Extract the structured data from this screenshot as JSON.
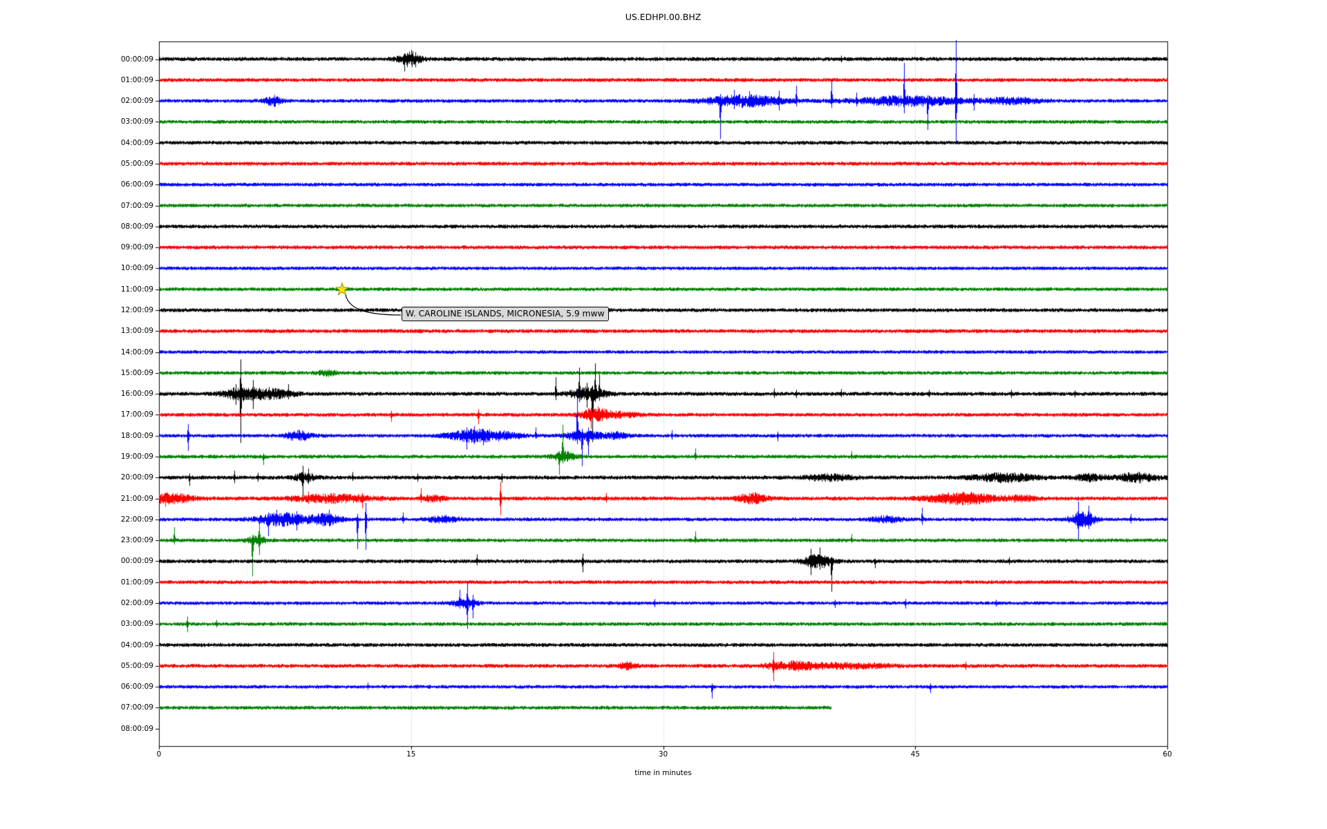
{
  "title": "US.EDHPI.00.BHZ",
  "xlabel": "time in minutes",
  "annotation": {
    "label": "W. CAROLINE ISLANDS, MICRONESIA, 5.9 mww",
    "row": 11,
    "minute": 10.9
  },
  "axis": {
    "xticks": [
      "0",
      "15",
      "30",
      "45",
      "60"
    ],
    "xtick_values": [
      0,
      15,
      30,
      45,
      60
    ],
    "grid_minutes": [
      15,
      30,
      45
    ]
  },
  "colors": {
    "cycle": [
      "#000000",
      "#ff0000",
      "#0000ff",
      "#008000"
    ],
    "grid": "#ababab",
    "box": "#000000",
    "star": "#f8e403",
    "star_edge": "#8a7a00",
    "annotation_bg": "#d9d9d9"
  },
  "chart_data": {
    "type": "line",
    "mode": "helicorder",
    "title": "US.EDHPI.00.BHZ",
    "xlabel": "time in minutes",
    "x_range": [
      0,
      60
    ],
    "row_duration_minutes": 60,
    "grid": "vertical-dotted",
    "rows": [
      {
        "label": "00:00:09",
        "c": 0,
        "base": 2.8,
        "bands": [
          {
            "t": 14.9,
            "w": 0.45,
            "a": 9
          }
        ],
        "spikes": [
          {
            "t": 14.6,
            "up": 8,
            "dn": 18
          },
          {
            "t": 15.0,
            "up": 13,
            "dn": 8
          },
          {
            "t": 15.25,
            "up": 10,
            "dn": 12
          },
          {
            "t": 40.6,
            "up": 5,
            "dn": 5
          }
        ]
      },
      {
        "label": "01:00:09",
        "c": 1,
        "base": 2.7
      },
      {
        "label": "02:00:09",
        "c": 2,
        "base": 2.6,
        "bands": [
          {
            "t": 6.8,
            "w": 0.35,
            "a": 6
          },
          {
            "t": 34.8,
            "w": 1.6,
            "a": 7
          },
          {
            "t": 44.6,
            "w": 2.2,
            "a": 6
          },
          {
            "t": 50.8,
            "w": 1.2,
            "a": 3.5
          }
        ],
        "spikes": [
          {
            "t": 33.4,
            "up": 10,
            "dn": 55
          },
          {
            "t": 34.2,
            "up": 16,
            "dn": 12
          },
          {
            "t": 35.1,
            "up": 14,
            "dn": 10
          },
          {
            "t": 36.9,
            "up": 15,
            "dn": 14
          },
          {
            "t": 37.9,
            "up": 22,
            "dn": 8
          },
          {
            "t": 40.0,
            "up": 31,
            "dn": 10
          },
          {
            "t": 41.5,
            "up": 12,
            "dn": 8
          },
          {
            "t": 44.35,
            "up": 55,
            "dn": 18
          },
          {
            "t": 45.75,
            "up": 8,
            "dn": 42
          },
          {
            "t": 47.4,
            "up": 88,
            "dn": 58
          },
          {
            "t": 48.5,
            "up": 10,
            "dn": 14
          }
        ]
      },
      {
        "label": "03:00:09",
        "c": 3,
        "base": 2.6
      },
      {
        "label": "04:00:09",
        "c": 0,
        "base": 2.7
      },
      {
        "label": "05:00:09",
        "c": 1,
        "base": 2.7
      },
      {
        "label": "06:00:09",
        "c": 2,
        "base": 2.6
      },
      {
        "label": "07:00:09",
        "c": 3,
        "base": 2.6
      },
      {
        "label": "08:00:09",
        "c": 0,
        "base": 2.7
      },
      {
        "label": "09:00:09",
        "c": 1,
        "base": 2.7
      },
      {
        "label": "10:00:09",
        "c": 2,
        "base": 2.5
      },
      {
        "label": "11:00:09",
        "c": 3,
        "base": 2.6
      },
      {
        "label": "12:00:09",
        "c": 0,
        "base": 2.7
      },
      {
        "label": "13:00:09",
        "c": 1,
        "base": 2.8
      },
      {
        "label": "14:00:09",
        "c": 2,
        "base": 2.5
      },
      {
        "label": "15:00:09",
        "c": 3,
        "base": 2.6,
        "bands": [
          {
            "t": 10,
            "w": 0.4,
            "a": 3
          }
        ]
      },
      {
        "label": "16:00:09",
        "c": 0,
        "base": 2.8,
        "bands": [
          {
            "t": 5.0,
            "w": 0.8,
            "a": 8
          },
          {
            "t": 6.9,
            "w": 0.8,
            "a": 5
          },
          {
            "t": 25.5,
            "w": 0.7,
            "a": 8
          }
        ],
        "spikes": [
          {
            "t": 4.55,
            "up": 14,
            "dn": 16
          },
          {
            "t": 4.85,
            "up": 50,
            "dn": 71
          },
          {
            "t": 5.6,
            "up": 20,
            "dn": 22
          },
          {
            "t": 6.55,
            "up": 10,
            "dn": 9
          },
          {
            "t": 7.7,
            "up": 14,
            "dn": 8
          },
          {
            "t": 23.6,
            "up": 24,
            "dn": 9
          },
          {
            "t": 25.0,
            "up": 38,
            "dn": 12
          },
          {
            "t": 25.45,
            "up": 16,
            "dn": 20
          },
          {
            "t": 25.8,
            "up": 12,
            "dn": 70
          },
          {
            "t": 25.95,
            "up": 44,
            "dn": 12
          },
          {
            "t": 26.2,
            "up": 28,
            "dn": 10
          },
          {
            "t": 36.6,
            "up": 8,
            "dn": 6
          },
          {
            "t": 37.9,
            "up": 6,
            "dn": 6
          },
          {
            "t": 40.6,
            "up": 7,
            "dn": 5
          },
          {
            "t": 45.8,
            "up": 6,
            "dn": 5
          },
          {
            "t": 50.7,
            "up": 6,
            "dn": 6
          },
          {
            "t": 54.5,
            "up": 5,
            "dn": 5
          }
        ]
      },
      {
        "label": "17:00:09",
        "c": 1,
        "base": 2.7,
        "bands": [
          {
            "t": 25.9,
            "w": 0.6,
            "a": 7
          },
          {
            "t": 27.3,
            "w": 0.8,
            "a": 3
          }
        ],
        "spikes": [
          {
            "t": 13.8,
            "up": 6,
            "dn": 10
          },
          {
            "t": 19.0,
            "up": 8,
            "dn": 14
          },
          {
            "t": 25.7,
            "up": 10,
            "dn": 20
          },
          {
            "t": 26.1,
            "up": 12,
            "dn": 10
          }
        ]
      },
      {
        "label": "18:00:09",
        "c": 2,
        "base": 2.6,
        "bands": [
          {
            "t": 8.3,
            "w": 0.5,
            "a": 6
          },
          {
            "t": 18.6,
            "w": 1.0,
            "a": 7
          },
          {
            "t": 20.5,
            "w": 0.8,
            "a": 4
          },
          {
            "t": 25.2,
            "w": 0.7,
            "a": 6
          },
          {
            "t": 27.2,
            "w": 0.5,
            "a": 4
          }
        ],
        "spikes": [
          {
            "t": 1.72,
            "up": 17,
            "dn": 22
          },
          {
            "t": 18.3,
            "up": 12,
            "dn": 20
          },
          {
            "t": 18.75,
            "up": 14,
            "dn": 12
          },
          {
            "t": 19.3,
            "up": 10,
            "dn": 14
          },
          {
            "t": 22.4,
            "up": 12,
            "dn": 5
          },
          {
            "t": 24.9,
            "up": 67,
            "dn": 12
          },
          {
            "t": 25.15,
            "up": 10,
            "dn": 44
          },
          {
            "t": 25.55,
            "up": 12,
            "dn": 30
          },
          {
            "t": 30.5,
            "up": 8,
            "dn": 6
          },
          {
            "t": 36.8,
            "up": 6,
            "dn": 8
          }
        ]
      },
      {
        "label": "19:00:09",
        "c": 3,
        "base": 2.6,
        "bands": [
          {
            "t": 24.1,
            "w": 0.5,
            "a": 6
          }
        ],
        "spikes": [
          {
            "t": 6.2,
            "up": 5,
            "dn": 12
          },
          {
            "t": 23.8,
            "up": 8,
            "dn": 26
          },
          {
            "t": 24.0,
            "up": 46,
            "dn": 10
          },
          {
            "t": 31.9,
            "up": 12,
            "dn": 5
          },
          {
            "t": 41.2,
            "up": 8,
            "dn": 4
          }
        ]
      },
      {
        "label": "20:00:09",
        "c": 0,
        "base": 2.8,
        "bands": [
          {
            "t": 8.7,
            "w": 0.5,
            "a": 5
          },
          {
            "t": 39.9,
            "w": 1.0,
            "a": 3.5
          },
          {
            "t": 50.3,
            "w": 1.3,
            "a": 5
          },
          {
            "t": 55.4,
            "w": 0.6,
            "a": 4
          },
          {
            "t": 58.2,
            "w": 0.8,
            "a": 5.5
          }
        ],
        "spikes": [
          {
            "t": 1.8,
            "up": 6,
            "dn": 12
          },
          {
            "t": 4.5,
            "up": 10,
            "dn": 8
          },
          {
            "t": 5.9,
            "up": 7,
            "dn": 6
          },
          {
            "t": 8.55,
            "up": 17,
            "dn": 27
          },
          {
            "t": 8.9,
            "up": 13,
            "dn": 9
          },
          {
            "t": 11.5,
            "up": 8,
            "dn": 5
          },
          {
            "t": 15.4,
            "up": 6,
            "dn": 6
          },
          {
            "t": 20.4,
            "up": 6,
            "dn": 7
          }
        ]
      },
      {
        "label": "21:00:09",
        "c": 1,
        "base": 2.8,
        "bands": [
          {
            "t": 0.7,
            "w": 0.9,
            "a": 6
          },
          {
            "t": 10.3,
            "w": 1.6,
            "a": 5
          },
          {
            "t": 16.3,
            "w": 0.5,
            "a": 3
          },
          {
            "t": 35.3,
            "w": 0.6,
            "a": 6
          },
          {
            "t": 47.8,
            "w": 1.4,
            "a": 7
          },
          {
            "t": 51.3,
            "w": 0.6,
            "a": 3
          }
        ],
        "spikes": [
          {
            "t": 0.35,
            "up": 8,
            "dn": 12
          },
          {
            "t": 8.9,
            "up": 10,
            "dn": 8
          },
          {
            "t": 12.1,
            "up": 8,
            "dn": 14
          },
          {
            "t": 15.6,
            "up": 15,
            "dn": 6
          },
          {
            "t": 20.3,
            "up": 24,
            "dn": 24
          },
          {
            "t": 26.6,
            "up": 8,
            "dn": 6
          }
        ]
      },
      {
        "label": "22:00:09",
        "c": 2,
        "base": 2.6,
        "bands": [
          {
            "t": 7.3,
            "w": 1.0,
            "a": 8
          },
          {
            "t": 9.9,
            "w": 0.6,
            "a": 7
          },
          {
            "t": 16.9,
            "w": 0.6,
            "a": 4
          },
          {
            "t": 43.3,
            "w": 0.6,
            "a": 4
          },
          {
            "t": 55.0,
            "w": 0.5,
            "a": 10
          }
        ],
        "spikes": [
          {
            "t": 6.5,
            "up": 10,
            "dn": 24
          },
          {
            "t": 7.0,
            "up": 14,
            "dn": 10
          },
          {
            "t": 8.2,
            "up": 12,
            "dn": 16
          },
          {
            "t": 10.1,
            "up": 14,
            "dn": 10
          },
          {
            "t": 11.8,
            "up": 8,
            "dn": 43
          },
          {
            "t": 12.3,
            "up": 24,
            "dn": 44
          },
          {
            "t": 14.5,
            "up": 10,
            "dn": 6
          },
          {
            "t": 45.4,
            "up": 17,
            "dn": 8
          },
          {
            "t": 54.7,
            "up": 26,
            "dn": 30
          },
          {
            "t": 55.3,
            "up": 20,
            "dn": 14
          },
          {
            "t": 57.8,
            "up": 8,
            "dn": 6
          }
        ]
      },
      {
        "label": "23:00:09",
        "c": 3,
        "base": 2.6,
        "bands": [
          {
            "t": 5.8,
            "w": 0.4,
            "a": 5
          }
        ],
        "spikes": [
          {
            "t": 0.9,
            "up": 19,
            "dn": 6
          },
          {
            "t": 5.55,
            "up": 8,
            "dn": 52
          },
          {
            "t": 5.96,
            "up": 29,
            "dn": 21
          },
          {
            "t": 31.9,
            "up": 13,
            "dn": 4
          },
          {
            "t": 41.2,
            "up": 9,
            "dn": 4
          }
        ]
      },
      {
        "label": "00:00:09",
        "c": 0,
        "base": 2.7,
        "bands": [
          {
            "t": 39.2,
            "w": 0.6,
            "a": 8
          }
        ],
        "spikes": [
          {
            "t": 18.9,
            "up": 10,
            "dn": 6
          },
          {
            "t": 25.2,
            "up": 11,
            "dn": 16
          },
          {
            "t": 38.8,
            "up": 18,
            "dn": 20
          },
          {
            "t": 39.3,
            "up": 20,
            "dn": 12
          },
          {
            "t": 40.0,
            "up": 6,
            "dn": 44
          },
          {
            "t": 42.6,
            "up": 4,
            "dn": 10
          },
          {
            "t": 50.6,
            "up": 6,
            "dn": 5
          }
        ]
      },
      {
        "label": "01:00:09",
        "c": 1,
        "base": 2.7
      },
      {
        "label": "02:00:09",
        "c": 2,
        "base": 2.5,
        "bands": [
          {
            "t": 18.2,
            "w": 0.5,
            "a": 6
          }
        ],
        "spikes": [
          {
            "t": 17.9,
            "up": 19,
            "dn": 8
          },
          {
            "t": 18.35,
            "up": 30,
            "dn": 37
          },
          {
            "t": 18.65,
            "up": 12,
            "dn": 22
          },
          {
            "t": 29.5,
            "up": 6,
            "dn": 6
          },
          {
            "t": 40.2,
            "up": 5,
            "dn": 7
          },
          {
            "t": 44.4,
            "up": 6,
            "dn": 8
          },
          {
            "t": 49.8,
            "up": 5,
            "dn": 5
          }
        ]
      },
      {
        "label": "03:00:09",
        "c": 3,
        "base": 2.6,
        "spikes": [
          {
            "t": 1.7,
            "up": 11,
            "dn": 12
          },
          {
            "t": 3.4,
            "up": 6,
            "dn": 5
          }
        ]
      },
      {
        "label": "04:00:09",
        "c": 0,
        "base": 2.7
      },
      {
        "label": "05:00:09",
        "c": 1,
        "base": 2.7,
        "bands": [
          {
            "t": 27.9,
            "w": 0.4,
            "a": 4
          },
          {
            "t": 37.8,
            "w": 1.2,
            "a": 5
          },
          {
            "t": 41.5,
            "w": 1.5,
            "a": 3
          }
        ],
        "spikes": [
          {
            "t": 36.55,
            "up": 20,
            "dn": 22
          },
          {
            "t": 48.0,
            "up": 6,
            "dn": 6
          }
        ]
      },
      {
        "label": "06:00:09",
        "c": 2,
        "base": 2.5,
        "spikes": [
          {
            "t": 12.4,
            "up": 6,
            "dn": 4
          },
          {
            "t": 32.9,
            "up": 5,
            "dn": 17
          },
          {
            "t": 45.9,
            "up": 5,
            "dn": 9
          }
        ]
      },
      {
        "label": "07:00:09",
        "c": 3,
        "base": 2.7,
        "end": 40
      },
      {
        "label": "08:00:09",
        "c": 0,
        "trace": false
      }
    ]
  }
}
